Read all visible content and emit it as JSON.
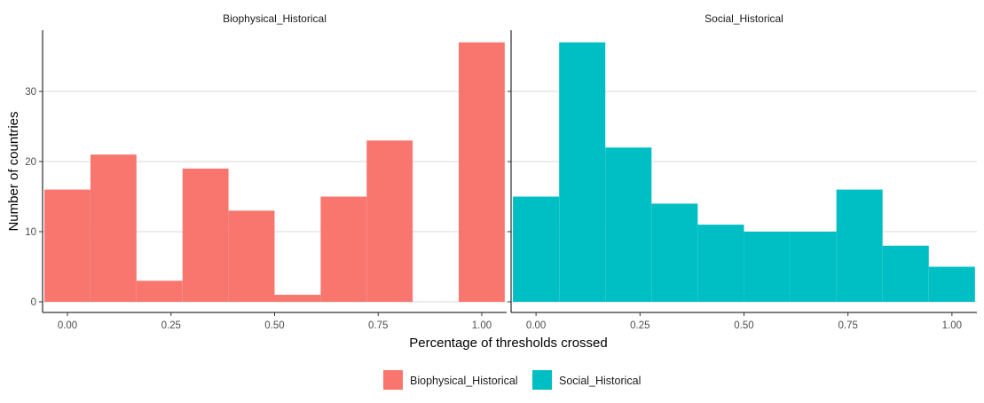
{
  "chart_data": {
    "type": "bar",
    "subtype": "faceted-histogram",
    "xlabel": "Percentage of thresholds crossed",
    "ylabel": "Number of countries",
    "x_ticks": [
      "0.00",
      "0.25",
      "0.50",
      "0.75",
      "1.00"
    ],
    "y_ticks": [
      "0",
      "10",
      "20",
      "30"
    ],
    "xlim": [
      -0.06,
      1.06
    ],
    "ylim": [
      0,
      38
    ],
    "grid": "horizontal",
    "legend_position": "bottom",
    "bin_width": 0.111,
    "facets": [
      {
        "title": "Biophysical_Historical",
        "color": "#F8766D",
        "bin_starts": [
          -0.0556,
          0.0556,
          0.1667,
          0.2778,
          0.3889,
          0.5,
          0.6111,
          0.7222,
          0.8333,
          0.9444
        ],
        "values": [
          16,
          21,
          3,
          19,
          13,
          1,
          15,
          23,
          0,
          37
        ]
      },
      {
        "title": "Social_Historical",
        "color": "#00BFC4",
        "bin_starts": [
          -0.0556,
          0.0556,
          0.1667,
          0.2778,
          0.3889,
          0.5,
          0.6111,
          0.7222,
          0.8333,
          0.9444
        ],
        "values": [
          15,
          37,
          22,
          14,
          11,
          10,
          10,
          16,
          8,
          5
        ]
      }
    ],
    "legend": [
      {
        "label": "Biophysical_Historical",
        "color": "#F8766D"
      },
      {
        "label": "Social_Historical",
        "color": "#00BFC4"
      }
    ]
  }
}
